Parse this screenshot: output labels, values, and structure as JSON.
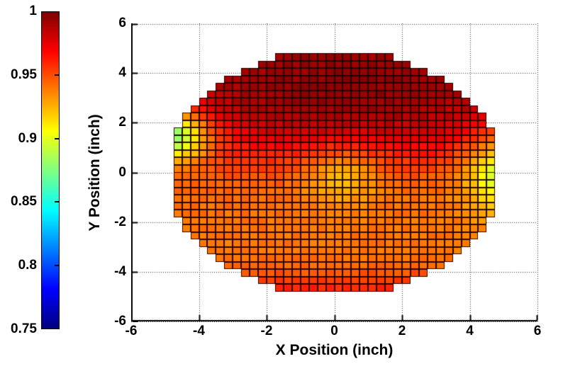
{
  "chart_data": {
    "type": "heatmap",
    "title": "",
    "xlabel": "X Position (inch)",
    "ylabel": "Y Position (inch)",
    "xlim": [
      -6,
      6
    ],
    "ylim": [
      -6,
      6
    ],
    "xticks": [
      -6,
      -4,
      -2,
      0,
      2,
      4,
      6
    ],
    "yticks": [
      6,
      4,
      2,
      0,
      -2,
      -4,
      -6
    ],
    "grid": {
      "visible": true,
      "style": "dotted",
      "color": "#333333"
    },
    "axis_color": "#000000",
    "background": "#ffffff",
    "colormap": "jet",
    "color_scale": {
      "min": 0.75,
      "max": 1.0,
      "ticks": [
        1,
        0.95,
        0.9,
        0.85,
        0.8,
        0.75
      ],
      "position": "left-of-plot"
    },
    "cells": {
      "x_center_start": -4.625,
      "dx": 0.25,
      "cols": 38,
      "y_center_start": 4.65,
      "dy": 0.3,
      "rows": 32,
      "mask_rx": 4.95,
      "mask_ry": 4.95,
      "edge_color": "rgba(25,0,0,0.95)"
    },
    "field": {
      "description": "Flood uniformity map over a ~9.7 inch circular region; values rise to ~1.0 (dark red) in upper half, ~0.94-0.95 (orange/red) in lower half, with a bright ~0.925 spot at center, a ~0.88 green patch on the left rim near y=1.6, a ~0.90 yellow column on the right rim near y=0, and a redder band along the bottom rim.",
      "base": 0.962,
      "vertical_trend": {
        "amplitude": 0.0225,
        "center_y": 0.8,
        "scale": 1.4
      },
      "features": [
        {
          "name": "top-dark-red-region",
          "x": 0.3,
          "y": 3.3,
          "sx": 2.6,
          "sy": 1.5,
          "amp": 0.013
        },
        {
          "name": "center-bright-spot",
          "x": 0.25,
          "y": -0.05,
          "sx": 0.8,
          "sy": 0.85,
          "amp": -0.026
        },
        {
          "name": "left-edge-cool-patch",
          "x": -5.0,
          "y": 1.55,
          "sx": 0.9,
          "sy": 0.75,
          "amp": -0.1
        },
        {
          "name": "right-edge-cool-patch",
          "x": 5.15,
          "y": 0.1,
          "sx": 0.85,
          "sy": 1.15,
          "amp": -0.062
        },
        {
          "name": "bottom-rim-red-band",
          "x": 0,
          "y": -4.75,
          "sx": 99,
          "sy": 0.55,
          "amp": 0.02
        }
      ],
      "noise_amplitude": 0.0035,
      "sampled_values": [
        {
          "x": 0.25,
          "y": 0,
          "value": 0.925
        },
        {
          "x": -4.6,
          "y": 1.6,
          "value": 0.885
        },
        {
          "x": -4.1,
          "y": 1.9,
          "value": 0.91
        },
        {
          "x": 4.6,
          "y": 0.1,
          "value": 0.9
        },
        {
          "x": 0,
          "y": 3.3,
          "value": 0.995
        },
        {
          "x": -2,
          "y": 3,
          "value": 0.99
        },
        {
          "x": -3,
          "y": 0,
          "value": 0.952
        },
        {
          "x": 3,
          "y": 2,
          "value": 0.975
        },
        {
          "x": 0,
          "y": -2,
          "value": 0.941
        },
        {
          "x": 2.5,
          "y": -2.5,
          "value": 0.944
        },
        {
          "x": 0,
          "y": -4.6,
          "value": 0.959
        }
      ]
    }
  }
}
